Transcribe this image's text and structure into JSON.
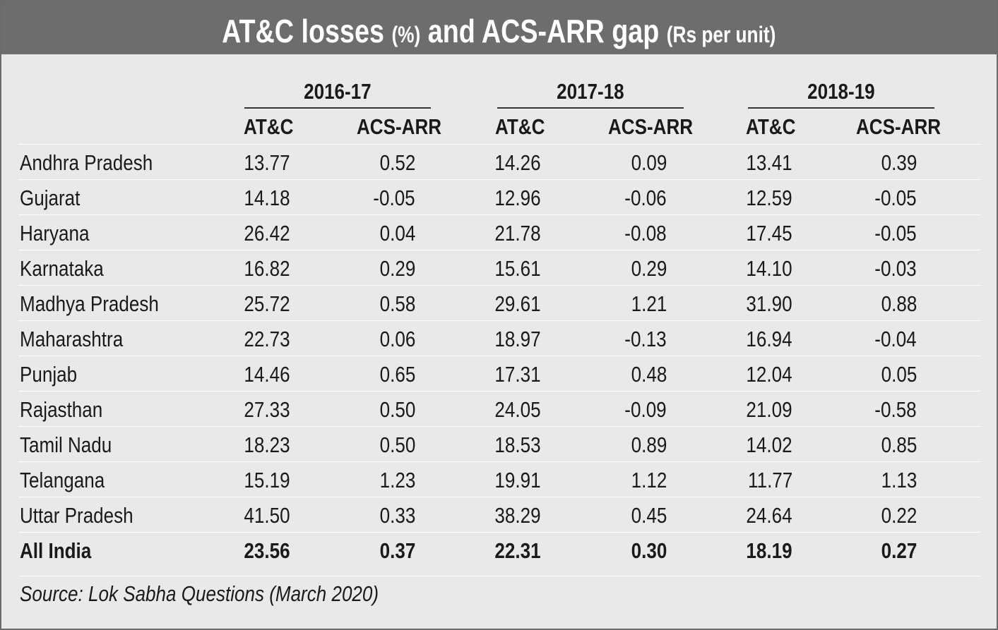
{
  "title": {
    "main_1": "AT&C losses",
    "unit_1": "(%)",
    "main_2": "and ACS-ARR gap",
    "unit_2": "(Rs per unit)"
  },
  "chart_data": {
    "type": "table",
    "years": [
      "2016-17",
      "2017-18",
      "2018-19"
    ],
    "columns": [
      "AT&C",
      "ACS-ARR"
    ],
    "rows": [
      {
        "state": "Andhra Pradesh",
        "values": [
          "13.77",
          "0.52",
          "14.26",
          "0.09",
          "13.41",
          "0.39"
        ]
      },
      {
        "state": "Gujarat",
        "values": [
          "14.18",
          "-0.05",
          "12.96",
          "-0.06",
          "12.59",
          "-0.05"
        ]
      },
      {
        "state": "Haryana",
        "values": [
          "26.42",
          "0.04",
          "21.78",
          "-0.08",
          "17.45",
          "-0.05"
        ]
      },
      {
        "state": "Karnataka",
        "values": [
          "16.82",
          "0.29",
          "15.61",
          "0.29",
          "14.10",
          "-0.03"
        ]
      },
      {
        "state": "Madhya Pradesh",
        "values": [
          "25.72",
          "0.58",
          "29.61",
          "1.21",
          "31.90",
          "0.88"
        ]
      },
      {
        "state": "Maharashtra",
        "values": [
          "22.73",
          "0.06",
          "18.97",
          "-0.13",
          "16.94",
          "-0.04"
        ]
      },
      {
        "state": "Punjab",
        "values": [
          "14.46",
          "0.65",
          "17.31",
          "0.48",
          "12.04",
          "0.05"
        ]
      },
      {
        "state": "Rajasthan",
        "values": [
          "27.33",
          "0.50",
          "24.05",
          "-0.09",
          "21.09",
          "-0.58"
        ]
      },
      {
        "state": "Tamil Nadu",
        "values": [
          "18.23",
          "0.50",
          "18.53",
          "0.89",
          "14.02",
          "0.85"
        ]
      },
      {
        "state": "Telangana",
        "values": [
          "15.19",
          "1.23",
          "19.91",
          "1.12",
          "11.77",
          "1.13"
        ]
      },
      {
        "state": "Uttar Pradesh",
        "values": [
          "41.50",
          "0.33",
          "38.29",
          "0.45",
          "24.64",
          "0.22"
        ]
      }
    ],
    "total": {
      "state": "All India",
      "values": [
        "23.56",
        "0.37",
        "22.31",
        "0.30",
        "18.19",
        "0.27"
      ]
    }
  },
  "source": "Source: Lok Sabha Questions (March 2020)",
  "colors": {
    "title_bg": "#6d6d6d",
    "panel_bg": "#e9e9e9",
    "row_divider": "#ffffff"
  }
}
